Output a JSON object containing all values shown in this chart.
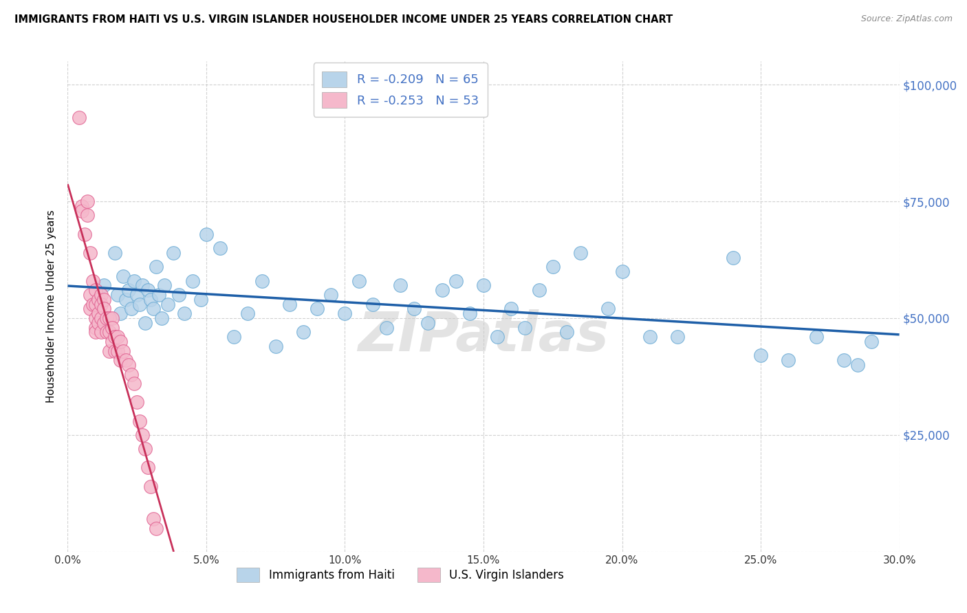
{
  "title": "IMMIGRANTS FROM HAITI VS U.S. VIRGIN ISLANDER HOUSEHOLDER INCOME UNDER 25 YEARS CORRELATION CHART",
  "source": "Source: ZipAtlas.com",
  "ylabel": "Householder Income Under 25 years",
  "xlim": [
    0.0,
    0.3
  ],
  "ylim": [
    0,
    105000
  ],
  "haiti_R": -0.209,
  "haiti_N": 65,
  "virgin_R": -0.253,
  "virgin_N": 53,
  "haiti_color": "#b8d4ea",
  "haiti_edge": "#6aaad4",
  "virgin_color": "#f5b8cb",
  "virgin_edge": "#e06090",
  "trend_blue": "#1e5fa8",
  "trend_pink": "#c8305a",
  "background_color": "#ffffff",
  "grid_color": "#cccccc",
  "watermark": "ZIPatlas",
  "right_axis_color": "#4472c4",
  "ytick_labels_right": [
    "",
    "$25,000",
    "$50,000",
    "$75,000",
    "$100,000"
  ],
  "ytick_vals": [
    0,
    25000,
    50000,
    75000,
    100000
  ],
  "haiti_x": [
    0.013,
    0.017,
    0.018,
    0.019,
    0.02,
    0.021,
    0.022,
    0.023,
    0.024,
    0.025,
    0.026,
    0.027,
    0.028,
    0.029,
    0.03,
    0.031,
    0.032,
    0.033,
    0.034,
    0.035,
    0.036,
    0.038,
    0.04,
    0.042,
    0.045,
    0.048,
    0.05,
    0.055,
    0.06,
    0.065,
    0.07,
    0.075,
    0.08,
    0.085,
    0.09,
    0.095,
    0.1,
    0.105,
    0.11,
    0.115,
    0.12,
    0.125,
    0.13,
    0.135,
    0.14,
    0.145,
    0.15,
    0.155,
    0.16,
    0.165,
    0.17,
    0.175,
    0.18,
    0.185,
    0.195,
    0.2,
    0.21,
    0.22,
    0.24,
    0.25,
    0.26,
    0.27,
    0.28,
    0.285,
    0.29
  ],
  "haiti_y": [
    57000,
    64000,
    55000,
    51000,
    59000,
    54000,
    56000,
    52000,
    58000,
    55000,
    53000,
    57000,
    49000,
    56000,
    54000,
    52000,
    61000,
    55000,
    50000,
    57000,
    53000,
    64000,
    55000,
    51000,
    58000,
    54000,
    68000,
    65000,
    46000,
    51000,
    58000,
    44000,
    53000,
    47000,
    52000,
    55000,
    51000,
    58000,
    53000,
    48000,
    57000,
    52000,
    49000,
    56000,
    58000,
    51000,
    57000,
    46000,
    52000,
    48000,
    56000,
    61000,
    47000,
    64000,
    52000,
    60000,
    46000,
    46000,
    63000,
    42000,
    41000,
    46000,
    41000,
    40000,
    45000
  ],
  "virgin_x": [
    0.004,
    0.005,
    0.005,
    0.006,
    0.007,
    0.007,
    0.008,
    0.008,
    0.008,
    0.009,
    0.009,
    0.01,
    0.01,
    0.01,
    0.01,
    0.01,
    0.011,
    0.011,
    0.011,
    0.012,
    0.012,
    0.012,
    0.012,
    0.013,
    0.013,
    0.013,
    0.014,
    0.014,
    0.015,
    0.015,
    0.015,
    0.016,
    0.016,
    0.016,
    0.017,
    0.017,
    0.018,
    0.018,
    0.019,
    0.019,
    0.02,
    0.021,
    0.022,
    0.023,
    0.024,
    0.025,
    0.026,
    0.027,
    0.028,
    0.029,
    0.03,
    0.031,
    0.032
  ],
  "virgin_y": [
    93000,
    74000,
    73000,
    68000,
    75000,
    72000,
    64000,
    55000,
    52000,
    58000,
    53000,
    56000,
    53000,
    50000,
    48000,
    47000,
    54000,
    51000,
    49000,
    55000,
    53000,
    50000,
    47000,
    54000,
    52000,
    49000,
    50000,
    47000,
    50000,
    47000,
    43000,
    50000,
    48000,
    45000,
    46000,
    43000,
    46000,
    43000,
    45000,
    41000,
    43000,
    41000,
    40000,
    38000,
    36000,
    32000,
    28000,
    25000,
    22000,
    18000,
    14000,
    7000,
    5000
  ],
  "legend_label_blue": "R = -0.209   N = 65",
  "legend_label_pink": "R = -0.253   N = 53",
  "legend_label_haiti": "Immigrants from Haiti",
  "legend_label_virgin": "U.S. Virgin Islanders"
}
